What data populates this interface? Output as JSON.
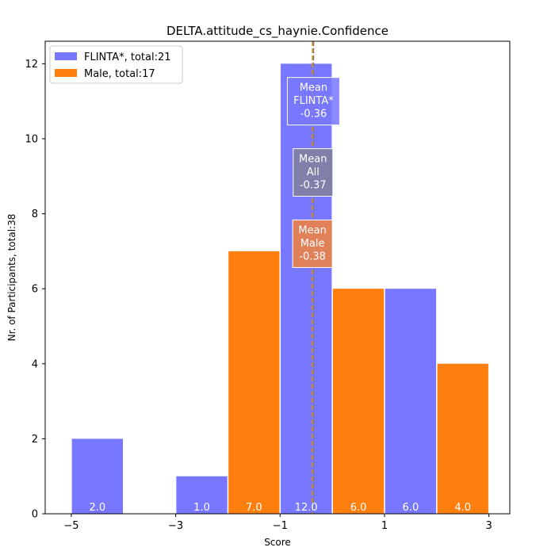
{
  "chart_data": {
    "type": "bar",
    "title": "DELTA.attitude_cs_haynie.Confidence",
    "xlabel": "Score",
    "ylabel": "Nr. of Participants, total:38",
    "xlim": [
      -5.5,
      3.4
    ],
    "ylim": [
      0,
      12.6
    ],
    "xticks": [
      -5,
      -3,
      -1,
      1,
      3
    ],
    "xtick_labels": [
      "−5",
      "−3",
      "−1",
      "1",
      "3"
    ],
    "yticks": [
      0,
      2,
      4,
      6,
      8,
      10,
      12
    ],
    "grid": false,
    "legend_position": "top-left",
    "colors": {
      "flinta": "#7777ff",
      "male": "#ff7f0e",
      "mean_all": "#7f7faa"
    },
    "series": [
      {
        "name": "FLINTA*, total:21",
        "color": "#7777ff",
        "bars": [
          {
            "x0": -5,
            "x1": -4,
            "value": 2,
            "label": "2.0"
          },
          {
            "x0": -3,
            "x1": -2,
            "value": 1,
            "label": "1.0"
          },
          {
            "x0": -1,
            "x1": 0,
            "value": 12,
            "label": "12.0"
          },
          {
            "x0": 1,
            "x1": 2,
            "value": 6,
            "label": "6.0"
          }
        ]
      },
      {
        "name": "Male, total:17",
        "color": "#ff7f0e",
        "bars": [
          {
            "x0": -2,
            "x1": -1,
            "value": 7,
            "label": "7.0"
          },
          {
            "x0": 0,
            "x1": 1,
            "value": 6,
            "label": "6.0"
          },
          {
            "x0": 2,
            "x1": 3,
            "value": 4,
            "label": "4.0"
          }
        ]
      }
    ],
    "means": [
      {
        "group": "flinta",
        "value": -0.36,
        "label_lines": [
          "Mean",
          "FLINTA*",
          "-0.36"
        ],
        "color": "#7777ff",
        "line_color": "#7777ff",
        "y_center": 11.0
      },
      {
        "group": "all",
        "value": -0.37,
        "label_lines": [
          "Mean",
          "All",
          "-0.37"
        ],
        "color": "#7f7faa",
        "line_color": "#2ca02c",
        "y_center": 9.1
      },
      {
        "group": "male",
        "value": -0.38,
        "label_lines": [
          "Mean",
          "Male",
          "-0.38"
        ],
        "color": "#e0815a",
        "line_color": "#ff7f0e",
        "y_center": 7.2
      }
    ]
  }
}
